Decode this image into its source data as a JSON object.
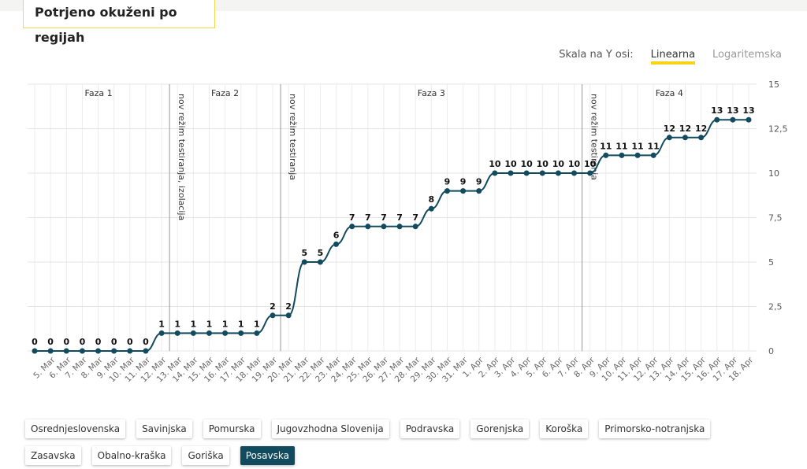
{
  "header": {
    "title": "Potrjeno okuženi po regijah"
  },
  "scale_toggle": {
    "label": "Skala na Y osi:",
    "options": [
      "Linearna",
      "Logaritemska"
    ],
    "selected": 0
  },
  "chart_data": {
    "type": "line",
    "categories": [
      null,
      "5. Mar",
      "6. Mar",
      "7. Mar",
      "8. Mar",
      "9. Mar",
      "10. Mar",
      "11. Mar",
      "12. Mar",
      "13. Mar",
      "14. Mar",
      "15. Mar",
      "16. Mar",
      "17. Mar",
      "18. Mar",
      "19. Mar",
      "20. Mar",
      "21. Mar",
      "22. Mar",
      "23. Mar",
      "24. Mar",
      "25. Mar",
      "26. Mar",
      "27. Mar",
      "28. Mar",
      "29. Mar",
      "30. Mar",
      "31. Mar",
      "1. Apr",
      "2. Apr",
      "3. Apr",
      "4. Apr",
      "5. Apr",
      "6. Apr",
      "7. Apr",
      "8. Apr",
      "9. Apr",
      "10. Apr",
      "11. Apr",
      "12. Apr",
      "13. Apr",
      "14. Apr",
      "15. Apr",
      "16. Apr",
      "17. Apr",
      "18. Apr"
    ],
    "series": [
      {
        "name": "Posavska",
        "color": "#124a5e",
        "values": [
          0,
          0,
          0,
          0,
          0,
          0,
          0,
          0,
          1,
          1,
          1,
          1,
          1,
          1,
          1,
          2,
          2,
          5,
          5,
          6,
          7,
          7,
          7,
          7,
          7,
          8,
          9,
          9,
          9,
          10,
          10,
          10,
          10,
          10,
          10,
          10,
          11,
          11,
          11,
          11,
          12,
          12,
          12,
          13,
          13,
          13
        ]
      }
    ],
    "ylim": [
      0,
      15
    ],
    "yticks": [
      0,
      {
        "value": 2.5,
        "label": "2,5"
      },
      5,
      {
        "value": 7.5,
        "label": "7,5"
      },
      10,
      {
        "value": 12.5,
        "label": "12,5"
      },
      15
    ],
    "grid": true,
    "phase_lines": [
      {
        "x_index": 8.5,
        "label": "nov režim testiranja, izolacija"
      },
      {
        "x_index": 15.5,
        "label": "nov režim testiranja"
      },
      {
        "x_index": 34.5,
        "label": "nov režim testiranja"
      }
    ],
    "phases": [
      "Faza 1",
      "Faza 2",
      "Faza 3",
      "Faza 4"
    ]
  },
  "regions": {
    "items": [
      "Osrednjeslovenska",
      "Savinjska",
      "Pomurska",
      "Jugovzhodna Slovenija",
      "Podravska",
      "Gorenjska",
      "Koroška",
      "Primorsko-notranjska",
      "Zasavska",
      "Obalno-kraška",
      "Goriška",
      "Posavska"
    ],
    "selected": 11
  }
}
